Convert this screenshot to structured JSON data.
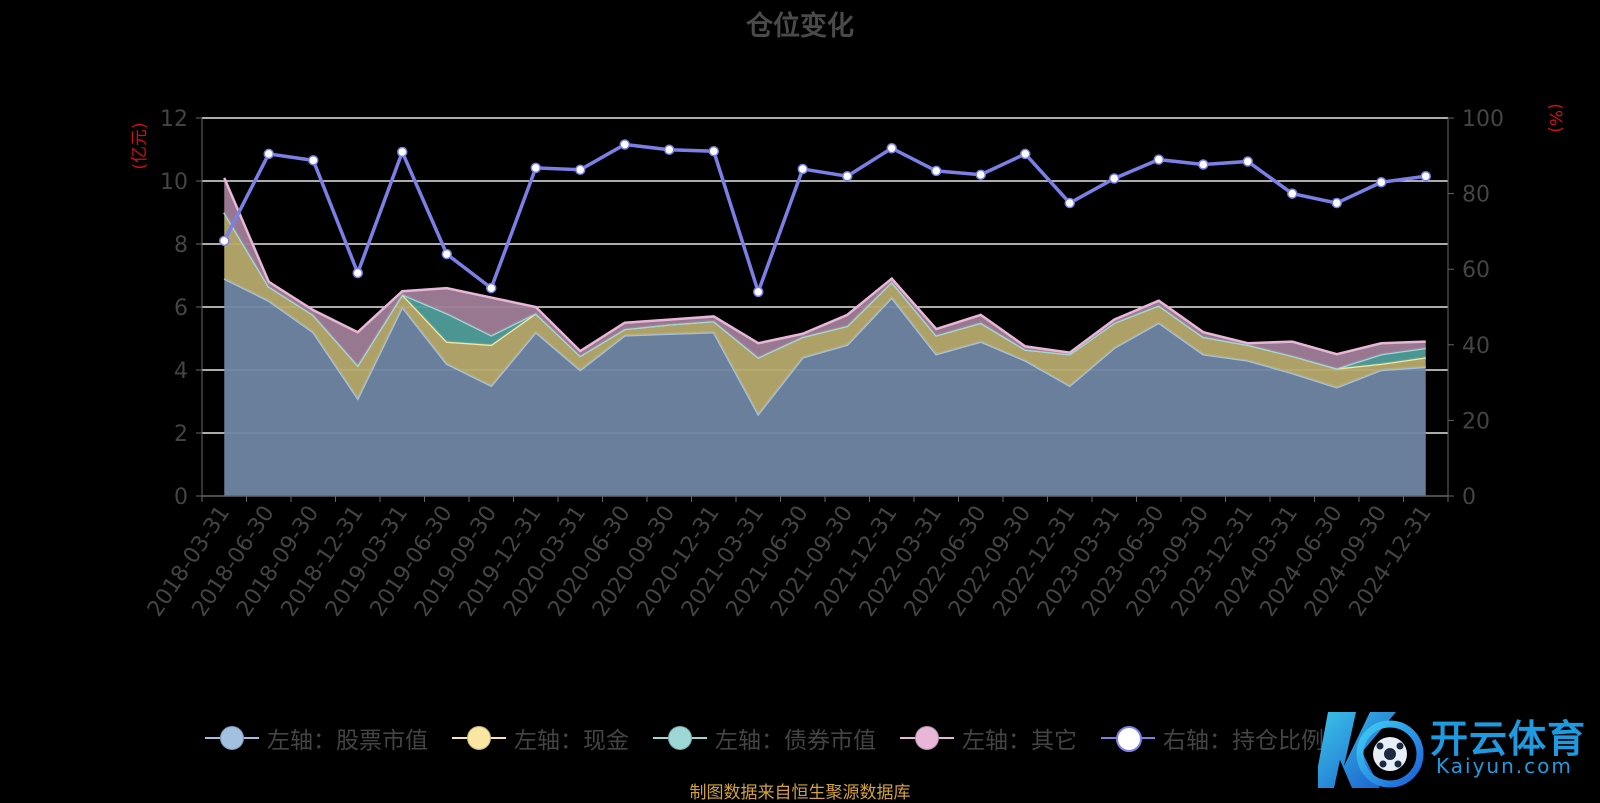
{
  "chart_data": {
    "type": "area",
    "title": "仓位变化",
    "source_note": "制图数据来自恒生聚源数据库",
    "y_left_label": "(亿元)",
    "y_right_label": "(%)",
    "y_left_lim": [
      0,
      12
    ],
    "y_left_ticks": [
      0,
      2,
      4,
      6,
      8,
      10,
      12
    ],
    "y_right_lim": [
      0,
      100
    ],
    "y_right_ticks": [
      0,
      20,
      40,
      60,
      80,
      100
    ],
    "grid": true,
    "legend_position": "bottom",
    "categories": [
      "2018-03-31",
      "2018-06-30",
      "2018-09-30",
      "2018-12-31",
      "2019-03-31",
      "2019-06-30",
      "2019-09-30",
      "2019-12-31",
      "2020-03-31",
      "2020-06-30",
      "2020-09-30",
      "2020-12-31",
      "2021-03-31",
      "2021-06-30",
      "2021-09-30",
      "2021-12-31",
      "2022-03-31",
      "2022-06-30",
      "2022-09-30",
      "2022-12-31",
      "2023-03-31",
      "2023-06-30",
      "2023-09-30",
      "2023-12-31",
      "2024-03-31",
      "2024-06-30",
      "2024-09-30",
      "2024-12-31"
    ],
    "series": [
      {
        "name": "左轴：股票市值",
        "axis": "left",
        "color": "#a4c0e0",
        "fill": "#6f86a4",
        "values": [
          6.9,
          6.2,
          5.2,
          3.1,
          6.0,
          4.2,
          3.5,
          5.2,
          4.0,
          5.1,
          5.15,
          5.2,
          2.6,
          4.4,
          4.8,
          6.3,
          4.5,
          4.9,
          4.3,
          3.5,
          4.7,
          5.5,
          4.5,
          4.3,
          3.9,
          3.45,
          4.0,
          4.1
        ]
      },
      {
        "name": "左轴：现金",
        "axis": "left",
        "color": "#f9e6a0",
        "fill": "#b7aa6e",
        "values": [
          2.1,
          0.45,
          0.55,
          1.05,
          0.4,
          0.7,
          1.3,
          0.6,
          0.45,
          0.2,
          0.3,
          0.35,
          1.8,
          0.65,
          0.6,
          0.5,
          0.6,
          0.6,
          0.35,
          1.0,
          0.8,
          0.55,
          0.55,
          0.5,
          0.55,
          0.6,
          0.2,
          0.3
        ]
      },
      {
        "name": "左轴：债券市值",
        "axis": "left",
        "color": "#9ed8d6",
        "fill": "#4f9d9a",
        "values": [
          0,
          0,
          0,
          0,
          0,
          0.9,
          0.3,
          0,
          0,
          0,
          0,
          0,
          0,
          0,
          0,
          0,
          0,
          0,
          0,
          0,
          0,
          0,
          0,
          0,
          0,
          0,
          0.3,
          0.3
        ]
      },
      {
        "name": "左轴：其它",
        "axis": "left",
        "color": "#e8b6d6",
        "fill": "#a07d98",
        "values": [
          1.1,
          0.15,
          0.15,
          1.05,
          0.1,
          0.8,
          1.2,
          0.2,
          0.15,
          0.2,
          0.15,
          0.15,
          0.45,
          0.1,
          0.35,
          0.1,
          0.2,
          0.25,
          0.1,
          0.05,
          0.1,
          0.15,
          0.15,
          0.05,
          0.45,
          0.45,
          0.35,
          0.2
        ]
      },
      {
        "name": "右轴：持仓比例",
        "axis": "right",
        "color": "#7b7fe6",
        "values": [
          67.5,
          90.5,
          88.8,
          59.0,
          91.0,
          64.0,
          55.0,
          86.8,
          86.3,
          93.0,
          91.6,
          91.2,
          54.0,
          86.5,
          84.6,
          92.0,
          86.0,
          85.0,
          90.5,
          77.5,
          84.0,
          89.0,
          87.7,
          88.5,
          80.0,
          77.5,
          83.0,
          84.6
        ]
      }
    ]
  },
  "watermark": {
    "name": "开云体育",
    "domain": "Kaiyun.com"
  }
}
